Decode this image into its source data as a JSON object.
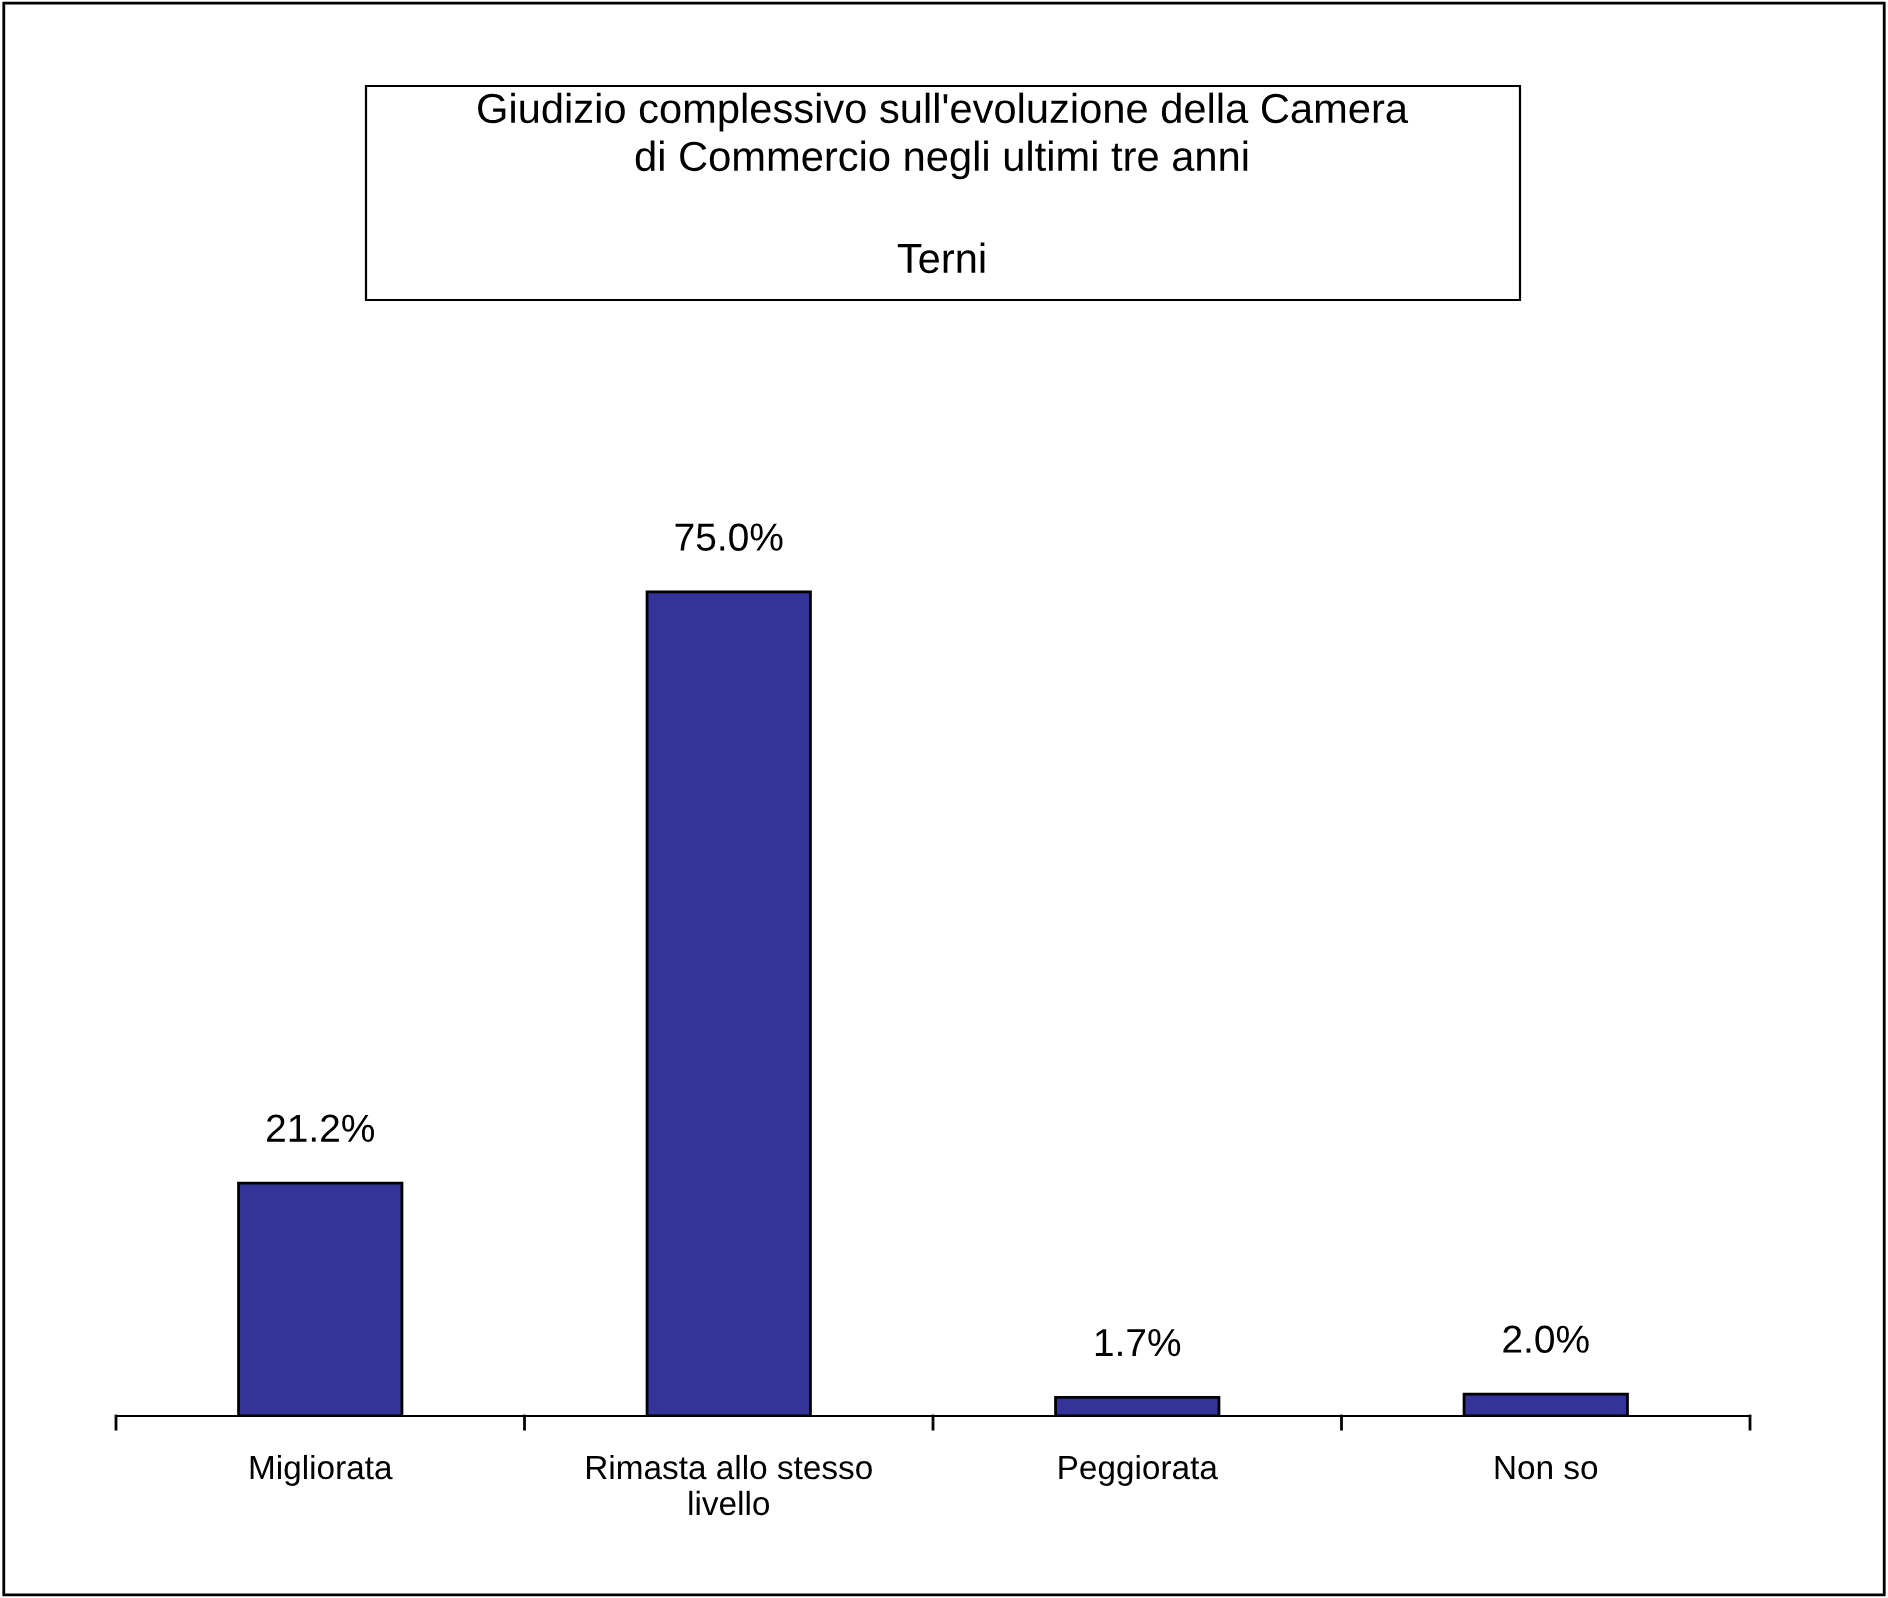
{
  "chart_data": {
    "type": "bar",
    "title": "Giudizio complessivo sull'evoluzione della Camera di Commercio negli ultimi tre anni",
    "subtitle": "Terni",
    "categories": [
      "Migliorata",
      "Rimasta allo stesso livello",
      "Peggiorata",
      "Non so"
    ],
    "values": [
      21.2,
      75.0,
      1.7,
      2.0
    ],
    "value_labels": [
      "21.2%",
      "75.0%",
      "1.7%",
      "2.0%"
    ],
    "color": "#333399",
    "grid": false,
    "legend": false
  }
}
